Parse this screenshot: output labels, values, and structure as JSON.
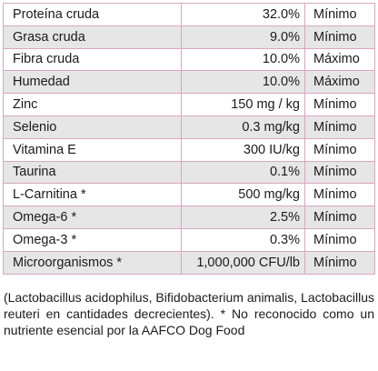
{
  "table": {
    "rows": [
      [
        "Proteína cruda",
        "32.0%",
        "Mínimo"
      ],
      [
        "Grasa cruda",
        "9.0%",
        "Mínimo"
      ],
      [
        "Fibra cruda",
        "10.0%",
        "Máximo"
      ],
      [
        "Humedad",
        "10.0%",
        "Máximo"
      ],
      [
        "Zinc",
        "150 mg / kg",
        "Mínimo"
      ],
      [
        "Selenio",
        "0.3 mg/kg",
        "Mínimo"
      ],
      [
        "Vitamina E",
        "300 IU/kg",
        "Mínimo"
      ],
      [
        "Taurina",
        "0.1%",
        "Mínimo"
      ],
      [
        "L-Carnitina *",
        "500 mg/kg",
        "Mínimo"
      ],
      [
        "Omega-6 *",
        "2.5%",
        "Mínimo"
      ],
      [
        "Omega-3 *",
        "0.3%",
        "Mínimo"
      ],
      [
        "Microorganismos *",
        "1,000,000 CFU/lb",
        "Mínimo"
      ]
    ]
  },
  "footnote": "(Lactobacillus acidophilus, Bifidobacterium animalis, Lactobacillus reuteri en cantidades decrecientes). * No reconocido como un nutriente esencial por la AAFCO Dog Food"
}
